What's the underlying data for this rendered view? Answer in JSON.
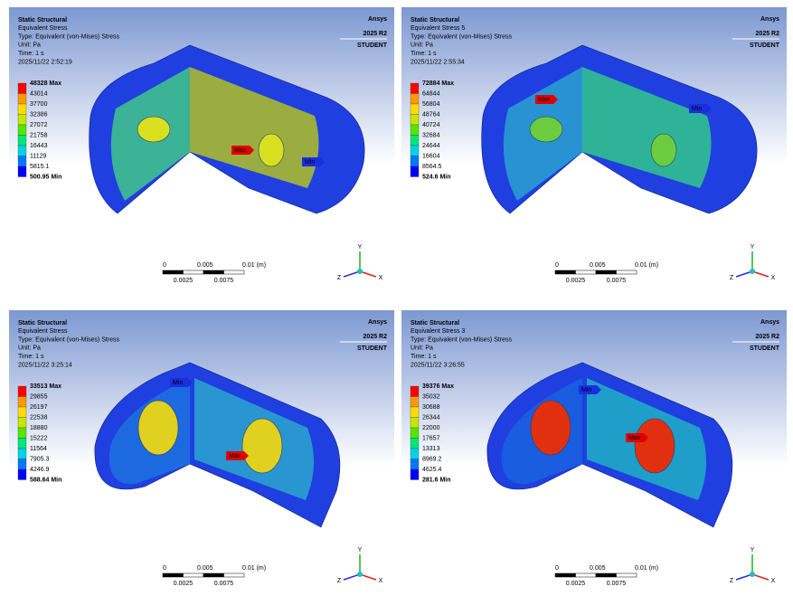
{
  "panels": [
    {
      "header": [
        "Static Structural",
        "Equivalent Stress",
        "Type: Equivalent (von-Mises) Stress",
        "Unit: Pa",
        "Time: 1 s",
        "2025/11/22 2:52:19"
      ],
      "legend": [
        "48328 Max",
        "43014",
        "37700",
        "32386",
        "27072",
        "21758",
        "16443",
        "11129",
        "5815.1",
        "500.95 Min"
      ],
      "logo": {
        "brand": "Ansys",
        "version": "2025 R2",
        "edition": "STUDENT"
      },
      "probes": {
        "max": "Max",
        "min": "Min"
      },
      "scale": {
        "top": [
          "0",
          "0.005",
          "0.01 (m)"
        ],
        "bottom": [
          "0.0025",
          "0.0075"
        ]
      },
      "triad": [
        "Y",
        "Z",
        "X"
      ]
    },
    {
      "header": [
        "Static Structural",
        "Equivalent Stress 5",
        "Type: Equivalent (von-Mises) Stress",
        "Unit: Pa",
        "Time: 1 s",
        "2025/11/22 2:55:34"
      ],
      "legend": [
        "72884 Max",
        "64844",
        "56804",
        "48764",
        "40724",
        "32684",
        "24644",
        "16604",
        "8564.5",
        "524.6 Min"
      ],
      "logo": {
        "brand": "Ansys",
        "version": "2025 R2",
        "edition": "STUDENT"
      },
      "probes": {
        "max": "Max",
        "min": "Min"
      },
      "scale": {
        "top": [
          "0",
          "0.005",
          "0.01 (m)"
        ],
        "bottom": [
          "0.0025",
          "0.0075"
        ]
      },
      "triad": [
        "Y",
        "Z",
        "X"
      ]
    },
    {
      "header": [
        "Static Structural",
        "Equivalent Stress",
        "Type: Equivalent (von-Mises) Stress",
        "Unit: Pa",
        "Time: 1 s",
        "2025/11/22 3:25:14"
      ],
      "legend": [
        "33513 Max",
        "29855",
        "26197",
        "22538",
        "18880",
        "15222",
        "11564",
        "7905.3",
        "4246.9",
        "588.64 Min"
      ],
      "logo": {
        "brand": "Ansys",
        "version": "2025 R2",
        "edition": "STUDENT"
      },
      "probes": {
        "max": "Max",
        "min": "Min"
      },
      "scale": {
        "top": [
          "0",
          "0.005",
          "0.01 (m)"
        ],
        "bottom": [
          "0.0025",
          "0.0075"
        ]
      },
      "triad": [
        "Y",
        "Z",
        "X"
      ]
    },
    {
      "header": [
        "Static Structural",
        "Equivalent Stress 3",
        "Type: Equivalent (von-Mises) Stress",
        "Unit: Pa",
        "Time: 1 s",
        "2025/11/22 3:26:55"
      ],
      "legend": [
        "39376 Max",
        "35032",
        "30688",
        "26344",
        "22000",
        "17657",
        "13313",
        "8969.2",
        "4625.4",
        "281.6 Min"
      ],
      "logo": {
        "brand": "Ansys",
        "version": "2025 R2",
        "edition": "STUDENT"
      },
      "probes": {
        "max": "Max",
        "min": "Min"
      },
      "scale": {
        "top": [
          "0",
          "0.005",
          "0.01 (m)"
        ],
        "bottom": [
          "0.0025",
          "0.0075"
        ]
      },
      "triad": [
        "Y",
        "Z",
        "X"
      ]
    }
  ]
}
